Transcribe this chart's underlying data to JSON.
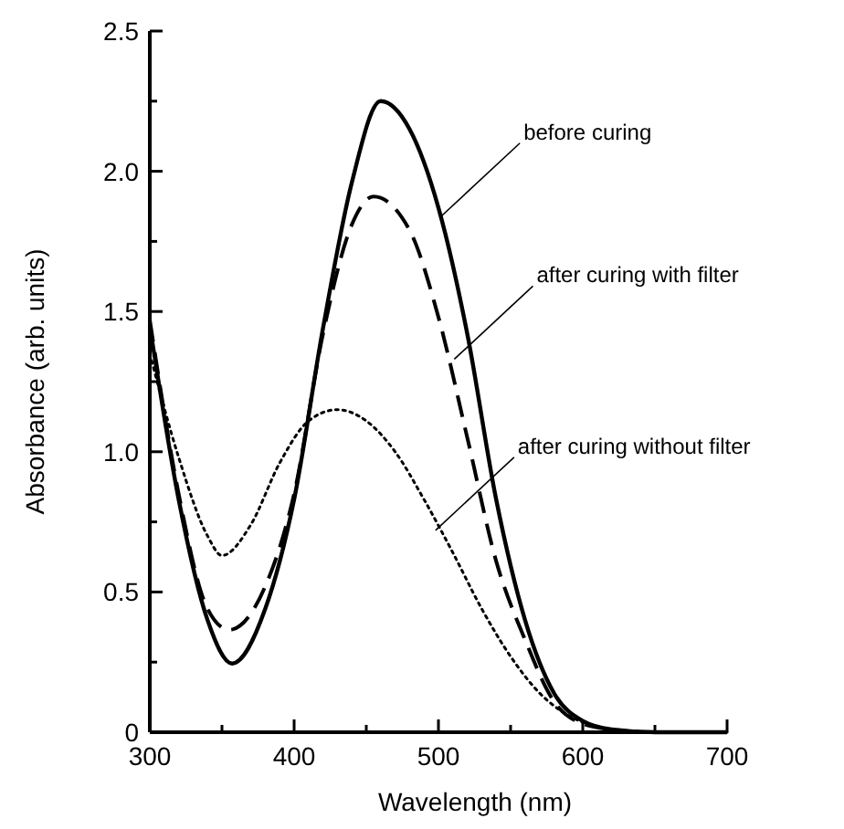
{
  "chart_data": {
    "type": "line",
    "xlabel": "Wavelength (nm)",
    "ylabel": "Absorbance (arb. units)",
    "x": [
      300,
      320,
      340,
      357,
      380,
      400,
      420,
      440,
      460,
      480,
      500,
      520,
      540,
      560,
      580,
      600,
      620,
      650,
      700
    ],
    "series": [
      {
        "color": "#000000",
        "line_style": "solid",
        "values": [
          1.45,
          0.83,
          0.4,
          0.245,
          0.44,
          0.83,
          1.44,
          1.96,
          2.25,
          2.15,
          1.87,
          1.42,
          0.83,
          0.4,
          0.14,
          0.04,
          0.01,
          0,
          0
        ]
      },
      {
        "color": "#000000",
        "line_style": "dashed",
        "x": [
          300,
          320,
          340,
          355,
          380,
          400,
          420,
          440,
          455,
          480,
          500,
          520,
          540,
          560,
          580,
          600,
          620,
          650,
          700
        ],
        "values": [
          1.47,
          0.85,
          0.44,
          0.365,
          0.52,
          0.85,
          1.42,
          1.81,
          1.91,
          1.79,
          1.48,
          1.05,
          0.61,
          0.33,
          0.11,
          0.03,
          0.01,
          0,
          0
        ]
      },
      {
        "color": "#000000",
        "line_style": "dotted",
        "x": [
          300,
          320,
          340,
          350,
          370,
          390,
          410,
          430,
          450,
          470,
          490,
          510,
          530,
          550,
          570,
          590,
          610,
          640,
          700
        ],
        "values": [
          1.35,
          0.98,
          0.7,
          0.63,
          0.74,
          0.96,
          1.11,
          1.15,
          1.11,
          1,
          0.83,
          0.64,
          0.44,
          0.27,
          0.14,
          0.06,
          0.02,
          0,
          0
        ]
      }
    ],
    "annotations": [
      {
        "text": "before curing",
        "x": 502,
        "y": 1.84
      },
      {
        "text": "after curing with filter",
        "x": 511,
        "y": 1.33
      },
      {
        "text": "after curing without filter",
        "x": 498,
        "y": 0.72
      }
    ],
    "xlim": [
      300,
      700
    ],
    "ylim": [
      0,
      2.5
    ],
    "xticks": [
      300,
      {
        "value": 350,
        "label": null
      },
      400,
      {
        "value": 450,
        "label": null
      },
      500,
      {
        "value": 550,
        "label": null
      },
      600,
      {
        "value": 650,
        "label": null
      },
      700
    ],
    "yticks": [
      0,
      {
        "value": 0.25,
        "label": null
      },
      0.5,
      {
        "value": 0.75,
        "label": null
      },
      {
        "value": 1,
        "label": "1.0"
      },
      {
        "value": 1.25,
        "label": null
      },
      1.5,
      {
        "value": 1.75,
        "label": null
      },
      {
        "value": 2,
        "label": "2.0"
      },
      {
        "value": 2.25,
        "label": null
      },
      2.5
    ],
    "grid": false,
    "marker": "none"
  }
}
